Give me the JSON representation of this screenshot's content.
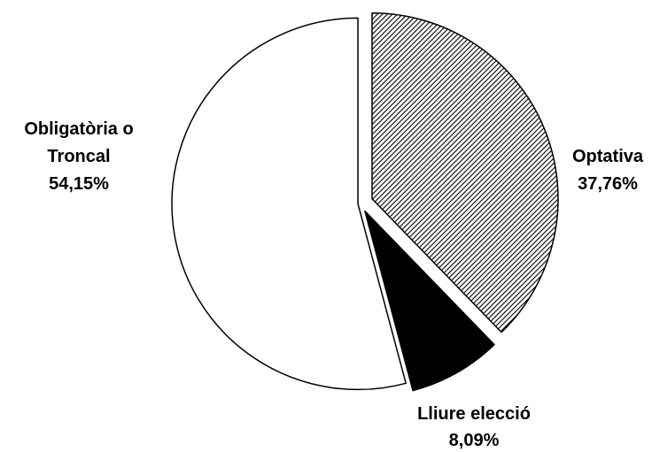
{
  "chart_data": {
    "type": "pie",
    "title": "",
    "slices": [
      {
        "label_lines": [
          "Optativa"
        ],
        "value_label": "37,76%",
        "value": 37.76,
        "fill": "hatch"
      },
      {
        "label_lines": [
          "Lliure elecció"
        ],
        "value_label": "8,09%",
        "value": 8.09,
        "fill": "#000000"
      },
      {
        "label_lines": [
          "Obligatòria o",
          "Troncal"
        ],
        "value_label": "54,15%",
        "value": 54.15,
        "fill": "#ffffff"
      }
    ],
    "start_angle_deg": 0,
    "direction": "clockwise",
    "exploded": true,
    "legend": "none"
  }
}
